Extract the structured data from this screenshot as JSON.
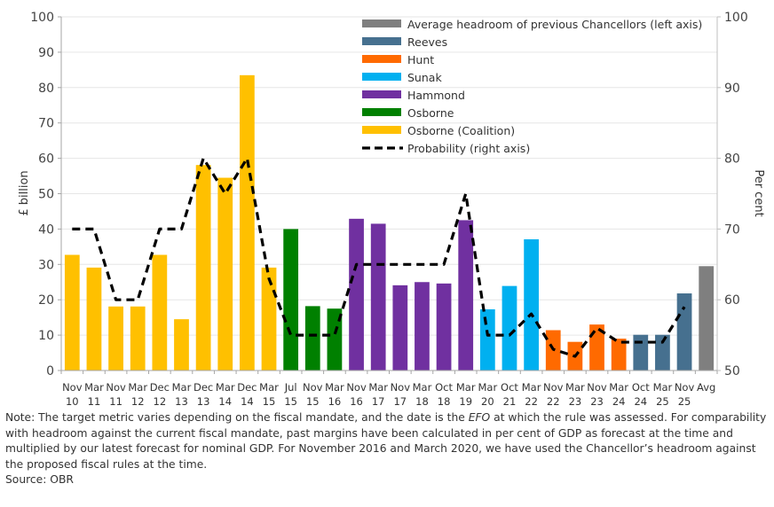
{
  "chart_data": {
    "type": "bar",
    "title": "",
    "ylabel": "£ billion",
    "y2label": "Per cent",
    "ylim": [
      0,
      100
    ],
    "y2lim": [
      50,
      100
    ],
    "yticks": [
      0,
      10,
      20,
      30,
      40,
      50,
      60,
      70,
      80,
      90,
      100
    ],
    "y2ticks": [
      50,
      60,
      70,
      80,
      90,
      100
    ],
    "grid": true,
    "legend_position": "top-right",
    "categories": [
      [
        "Nov",
        "10"
      ],
      [
        "Mar",
        "11"
      ],
      [
        "Nov",
        "11"
      ],
      [
        "Mar",
        "12"
      ],
      [
        "Dec",
        "12"
      ],
      [
        "Mar",
        "13"
      ],
      [
        "Dec",
        "13"
      ],
      [
        "Mar",
        "14"
      ],
      [
        "Dec",
        "14"
      ],
      [
        "Mar",
        "15"
      ],
      [
        "Jul",
        "15"
      ],
      [
        "Nov",
        "15"
      ],
      [
        "Mar",
        "16"
      ],
      [
        "Nov",
        "16"
      ],
      [
        "Mar",
        "17"
      ],
      [
        "Nov",
        "17"
      ],
      [
        "Mar",
        "18"
      ],
      [
        "Oct",
        "18"
      ],
      [
        "Mar",
        "19"
      ],
      [
        "Mar",
        "20"
      ],
      [
        "Oct",
        "21"
      ],
      [
        "Mar",
        "22"
      ],
      [
        "Nov",
        "22"
      ],
      [
        "Mar",
        "23"
      ],
      [
        "Nov",
        "23"
      ],
      [
        "Mar",
        "24"
      ],
      [
        "Oct",
        "24"
      ],
      [
        "Mar",
        "25"
      ],
      [
        "Nov",
        "25"
      ],
      [
        "Avg",
        ""
      ]
    ],
    "bar_values": [
      32.7,
      29.1,
      18.1,
      18.1,
      32.7,
      14.5,
      58.1,
      54.5,
      83.5,
      29.1,
      40.0,
      18.2,
      17.5,
      42.9,
      41.5,
      24.1,
      25.0,
      24.6,
      42.5,
      17.3,
      23.9,
      37.1,
      11.4,
      8.1,
      13.0,
      9.0,
      10.1,
      10.1,
      21.8,
      29.5
    ],
    "bar_series": [
      "Osborne (Coalition)",
      "Osborne (Coalition)",
      "Osborne (Coalition)",
      "Osborne (Coalition)",
      "Osborne (Coalition)",
      "Osborne (Coalition)",
      "Osborne (Coalition)",
      "Osborne (Coalition)",
      "Osborne (Coalition)",
      "Osborne (Coalition)",
      "Osborne",
      "Osborne",
      "Osborne",
      "Hammond",
      "Hammond",
      "Hammond",
      "Hammond",
      "Hammond",
      "Hammond",
      "Sunak",
      "Sunak",
      "Sunak",
      "Hunt",
      "Hunt",
      "Hunt",
      "Hunt",
      "Reeves",
      "Reeves",
      "Reeves",
      "Average headroom of previous Chancellors (left axis)"
    ],
    "probability": {
      "name": "Probability (right axis)",
      "axis": "right",
      "values": [
        70,
        70,
        60,
        60,
        70,
        70,
        80,
        75,
        80,
        63,
        55,
        55,
        55,
        65,
        65,
        65,
        65,
        65,
        75,
        55,
        55,
        58,
        53,
        52,
        56,
        54,
        54,
        54,
        59,
        null
      ]
    },
    "series": [
      {
        "name": "Average headroom of previous Chancellors (left axis)",
        "color": "#7f7f7f"
      },
      {
        "name": "Reeves",
        "color": "#46708f"
      },
      {
        "name": "Hunt",
        "color": "#ff6a00"
      },
      {
        "name": "Sunak",
        "color": "#00b0f0"
      },
      {
        "name": "Hammond",
        "color": "#7030a0"
      },
      {
        "name": "Osborne",
        "color": "#008000"
      },
      {
        "name": "Osborne (Coalition)",
        "color": "#ffc000"
      }
    ],
    "legend": [
      {
        "label": "Average headroom of previous Chancellors (left axis)",
        "kind": "bar",
        "color": "#7f7f7f"
      },
      {
        "label": "Reeves",
        "kind": "bar",
        "color": "#46708f"
      },
      {
        "label": "Hunt",
        "kind": "bar",
        "color": "#ff6a00"
      },
      {
        "label": "Sunak",
        "kind": "bar",
        "color": "#00b0f0"
      },
      {
        "label": "Hammond",
        "kind": "bar",
        "color": "#7030a0"
      },
      {
        "label": "Osborne",
        "kind": "bar",
        "color": "#008000"
      },
      {
        "label": "Osborne (Coalition)",
        "kind": "bar",
        "color": "#ffc000"
      },
      {
        "label": "Probability (right axis)",
        "kind": "line",
        "color": "#000000"
      }
    ]
  },
  "note": {
    "part1": "Note: The target metric varies depending on the fiscal mandate, and the date is the ",
    "efo": "EFO",
    "part2": " at which the rule was assessed. For comparability with headroom against the current fiscal mandate, past margins have been calculated in per cent of GDP as forecast at the time and multiplied by our latest forecast for nominal GDP. For November 2016 and March 2020, we have used the Chancellor’s headroom against the proposed fiscal rules at the time.",
    "source": "Source: OBR"
  }
}
